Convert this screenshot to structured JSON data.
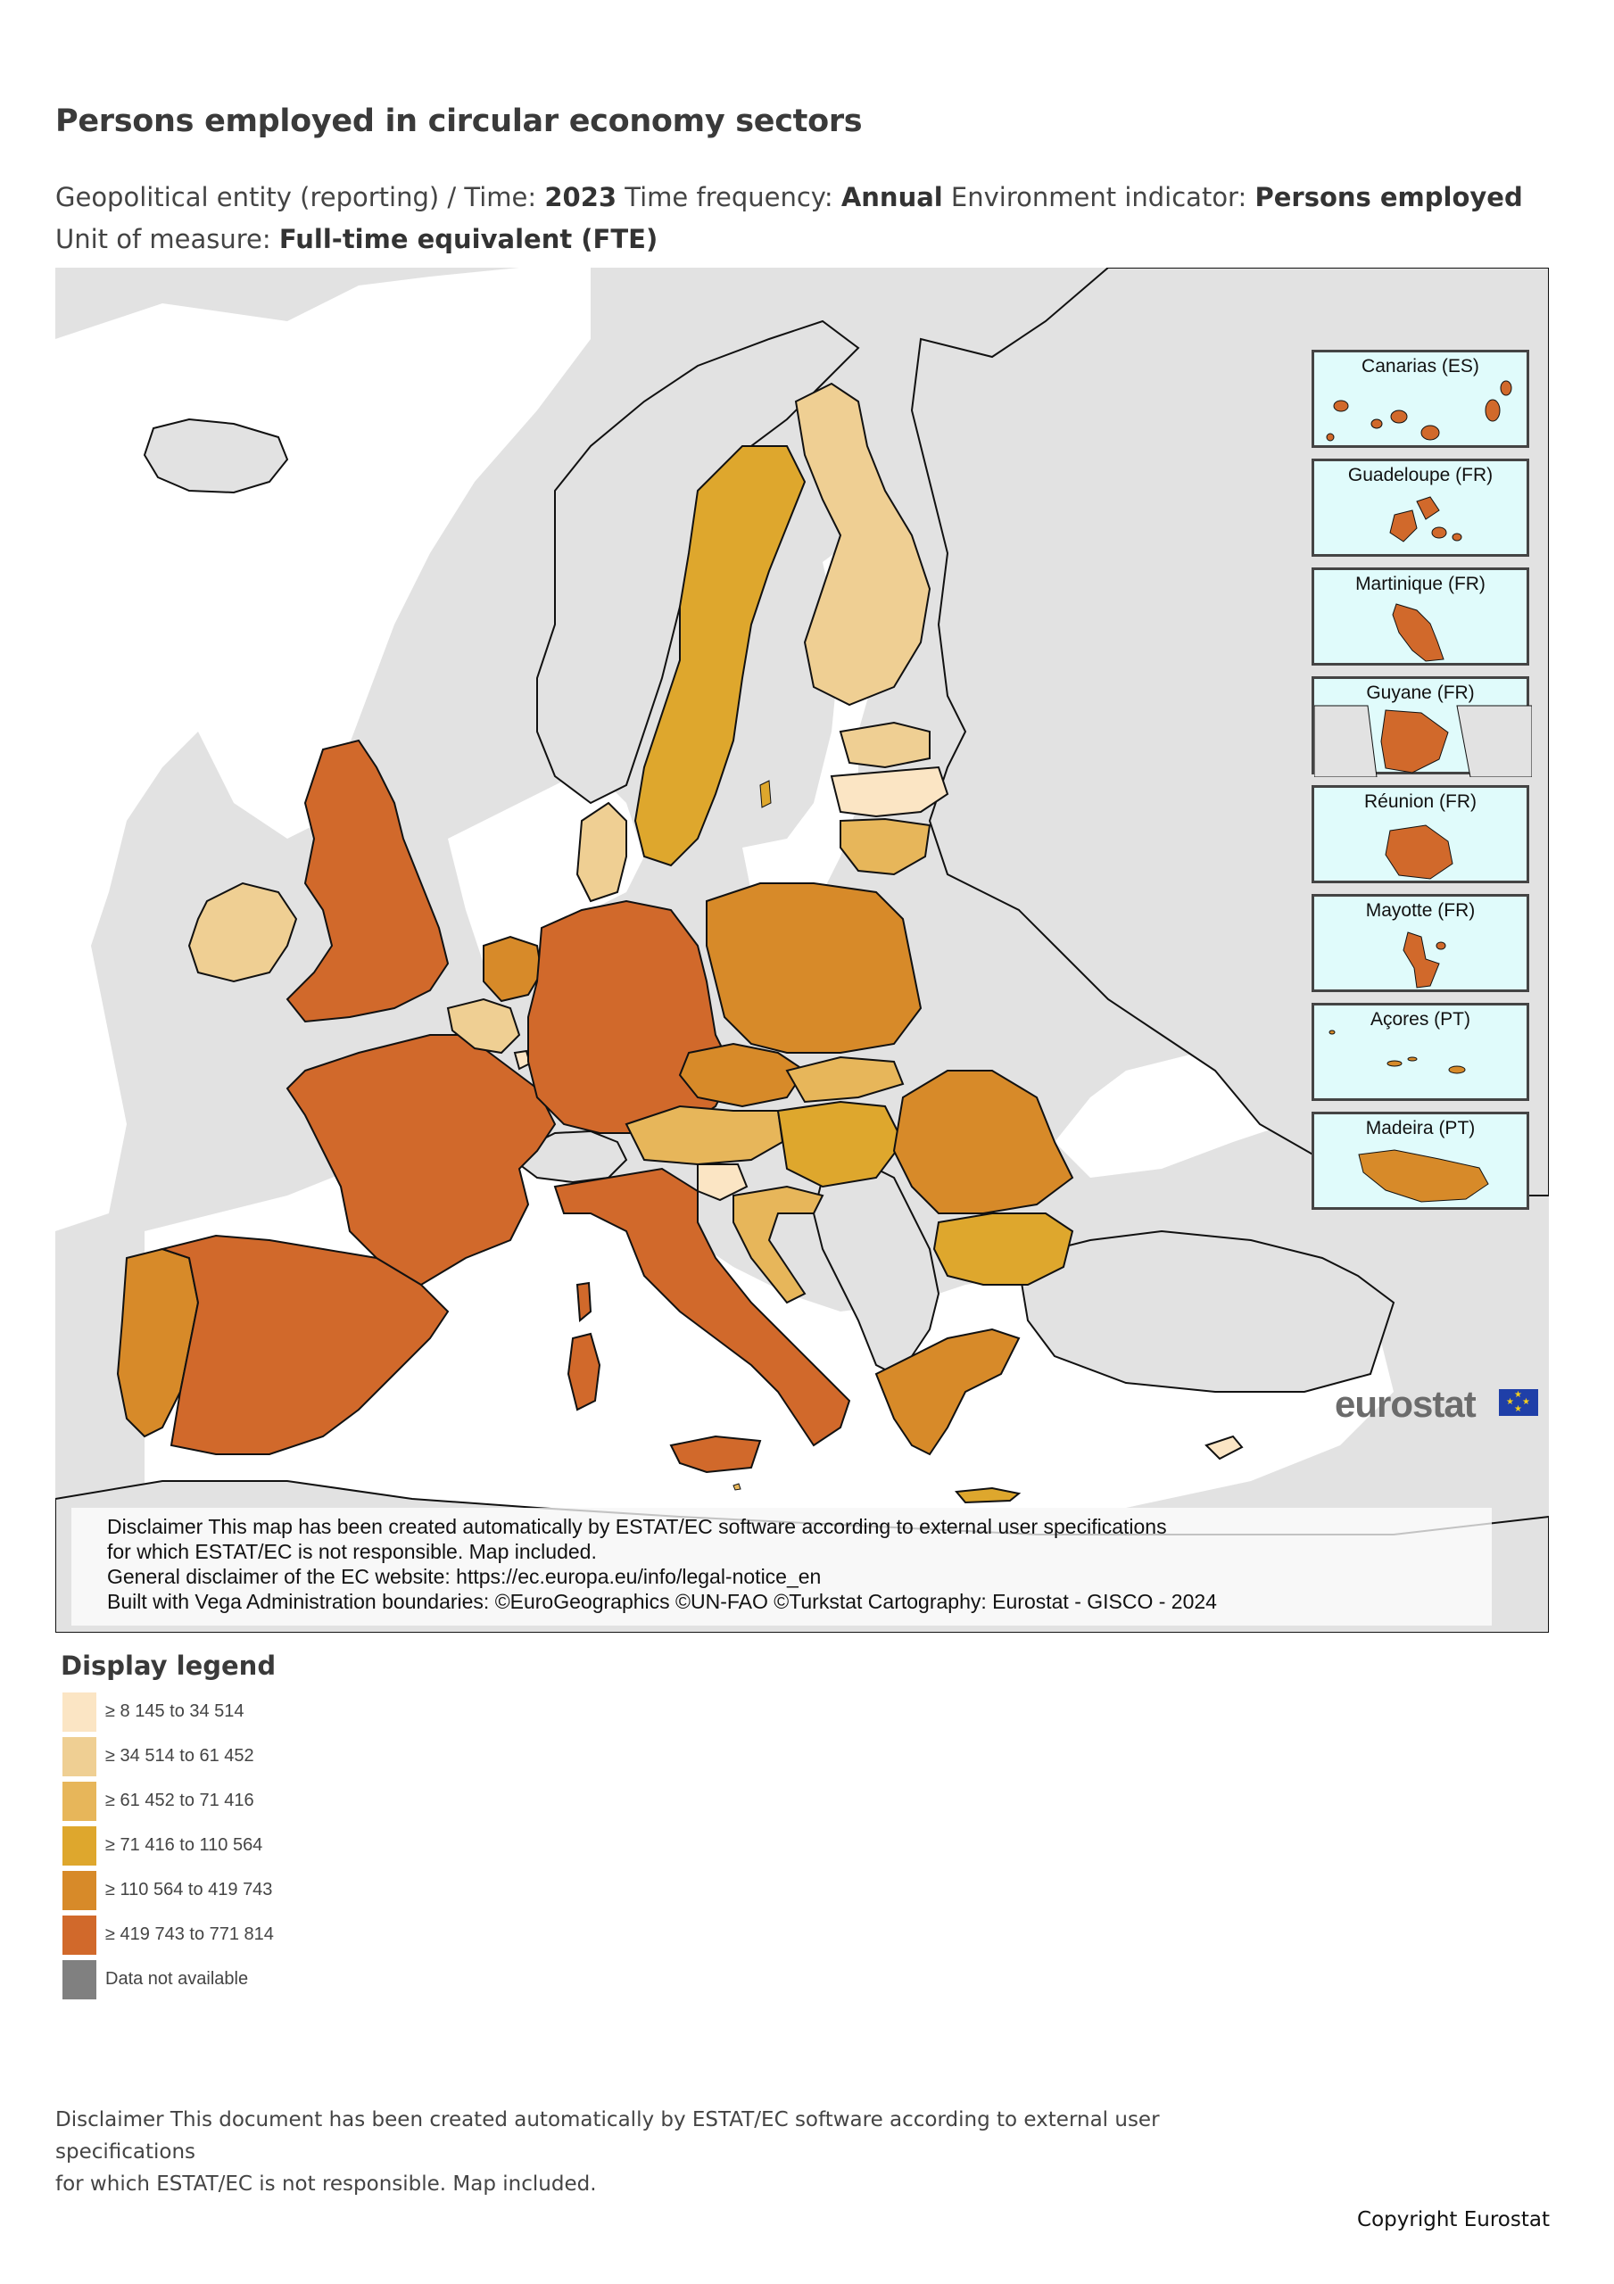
{
  "title": "Persons employed in circular economy sectors",
  "subtitle": {
    "geo_label": "Geopolitical entity (reporting)  / Time: ",
    "time_value": "2023",
    "freq_label": "  Time frequency: ",
    "freq_value": "Annual",
    "indicator_label": "  Environment indicator: ",
    "indicator_value": "Persons employed",
    "unit_label": "  Unit of measure: ",
    "unit_value": "Full-time equivalent (FTE)"
  },
  "colors": {
    "c1": "#fbe5c4",
    "c2": "#efcf93",
    "c3": "#e7b65a",
    "c4": "#dea72d",
    "c5": "#d78a29",
    "c6": "#d1692b",
    "na": "#808080",
    "nonEU": "#e2e2e2",
    "sea": "#ffffff",
    "inset_bg": "#e0fbfb"
  },
  "insets": [
    {
      "label": "Canarias (ES)",
      "class": "c6"
    },
    {
      "label": "Guadeloupe (FR)",
      "class": "c6"
    },
    {
      "label": "Martinique (FR)",
      "class": "c6"
    },
    {
      "label": "Guyane (FR)",
      "class": "c6"
    },
    {
      "label": "Réunion (FR)",
      "class": "c6"
    },
    {
      "label": "Mayotte (FR)",
      "class": "c6"
    },
    {
      "label": "Açores (PT)",
      "class": "c5"
    },
    {
      "label": "Madeira (PT)",
      "class": "c5"
    }
  ],
  "brand": "eurostat",
  "map_disclaimer": [
    "Disclaimer This map has been created automatically by ESTAT/EC software according to external user specifications",
    "for which ESTAT/EC is not responsible. Map included.",
    "General disclaimer of the EC website: https://ec.europa.eu/info/legal-notice_en",
    "Built with Vega Administration boundaries: ©EuroGeographics ©UN-FAO ©Turkstat Cartography: Eurostat - GISCO - 2024"
  ],
  "legend": {
    "title": "Display legend",
    "items": [
      {
        "label": "≥ 8 145 to 34 514",
        "color": "#fbe5c4"
      },
      {
        "label": "≥ 34 514 to 61 452",
        "color": "#efcf93"
      },
      {
        "label": "≥ 61 452 to 71 416",
        "color": "#e7b65a"
      },
      {
        "label": "≥ 71 416 to 110 564",
        "color": "#dea72d"
      },
      {
        "label": "≥ 110 564 to 419 743",
        "color": "#d78a29"
      },
      {
        "label": "≥ 419 743 to 771 814",
        "color": "#d1692b"
      },
      {
        "label": "Data not available",
        "color": "#808080"
      }
    ]
  },
  "doc_disclaimer": [
    "Disclaimer This document has been created automatically by ESTAT/EC software according to external user specifications",
    "for which ESTAT/EC is not responsible. Map included."
  ],
  "copyright": "Copyright Eurostat"
}
